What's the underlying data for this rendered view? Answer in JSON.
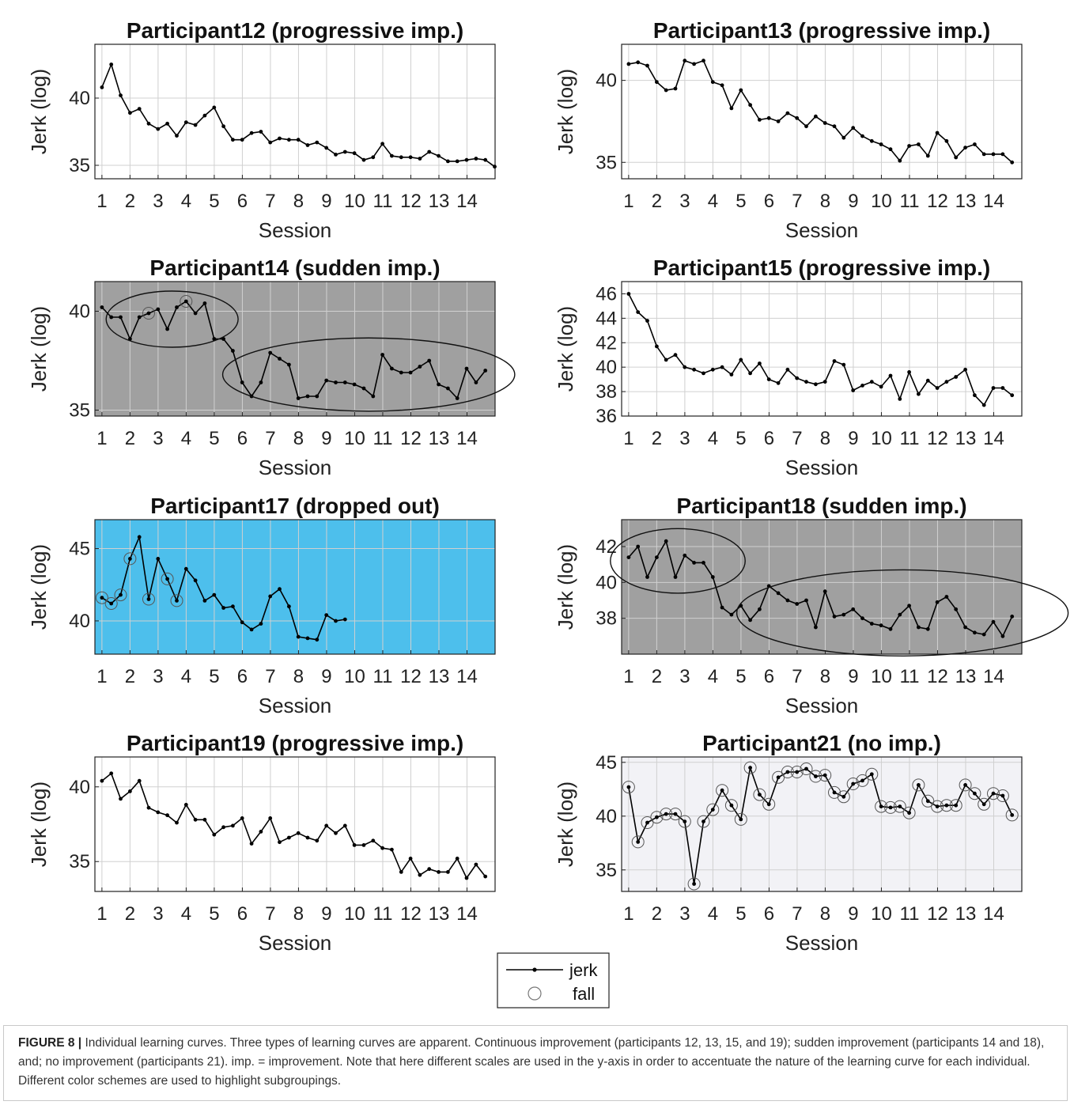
{
  "common": {
    "xlabel": "Session",
    "ylabel": "Jerk (log)",
    "xticks": [
      "1",
      "2",
      "3",
      "4",
      "5",
      "6",
      "7",
      "8",
      "9",
      "10",
      "11",
      "12",
      "13",
      "14"
    ],
    "point_spacing_sessions": 0.333
  },
  "legend": {
    "items": [
      {
        "label": "jerk",
        "marker": "dot-line"
      },
      {
        "label": "fall",
        "marker": "circle"
      }
    ],
    "placement": "bottom-center"
  },
  "caption": {
    "label": "FIGURE 8 |",
    "text": "Individual learning curves. Three types of learning curves are apparent. Continuous improvement (participants 12, 13, 15, and 19); sudden improvement (participants 14 and 18), and; no improvement (participants 21). imp. = improvement. Note that here different scales are used in the y-axis in order to accentuate the nature of the learning curve for each individual. Different color schemes are used to highlight subgroupings."
  },
  "colors": {
    "gray_background": "#a0a0a0",
    "blue_background": "#4dbfec",
    "light_background": "#f2f2f6",
    "white_background": "#ffffff",
    "line": "#000000",
    "grid": "#d0d0d0"
  },
  "chart_data": [
    {
      "type": "line",
      "title": "Participant12 (progressive imp.)",
      "background": "white",
      "ylim": [
        34,
        44
      ],
      "yticks": [
        35,
        40
      ],
      "values": [
        40.8,
        42.5,
        40.2,
        38.9,
        39.2,
        38.1,
        37.7,
        38.1,
        37.2,
        38.2,
        38.0,
        38.7,
        39.3,
        37.9,
        36.9,
        36.9,
        37.4,
        37.5,
        36.7,
        37.0,
        36.9,
        36.9,
        36.5,
        36.7,
        36.3,
        35.8,
        36.0,
        35.9,
        35.4,
        35.6,
        36.6,
        35.7,
        35.6,
        35.6,
        35.5,
        36.0,
        35.7,
        35.3,
        35.3,
        35.4,
        35.5,
        35.4,
        34.9
      ],
      "falls": [],
      "ellipses": []
    },
    {
      "type": "line",
      "title": "Participant13 (progressive imp.)",
      "background": "white",
      "ylim": [
        34,
        42.2
      ],
      "yticks": [
        35,
        40
      ],
      "values": [
        41.0,
        41.1,
        40.9,
        39.9,
        39.4,
        39.5,
        41.2,
        41.0,
        41.2,
        39.9,
        39.7,
        38.3,
        39.4,
        38.5,
        37.6,
        37.7,
        37.5,
        38.0,
        37.7,
        37.2,
        37.8,
        37.4,
        37.2,
        36.5,
        37.1,
        36.6,
        36.3,
        36.1,
        35.8,
        35.1,
        36.0,
        36.1,
        35.4,
        36.8,
        36.3,
        35.3,
        35.9,
        36.1,
        35.5,
        35.5,
        35.5,
        35.0
      ],
      "falls": [],
      "ellipses": []
    },
    {
      "type": "line",
      "title": "Participant14 (sudden imp.)",
      "background": "gray",
      "ylim": [
        34.7,
        41.5
      ],
      "yticks": [
        35,
        40
      ],
      "values": [
        40.2,
        39.7,
        39.7,
        38.6,
        39.7,
        39.9,
        40.1,
        39.1,
        40.2,
        40.5,
        39.9,
        40.4,
        38.6,
        38.6,
        38.0,
        36.4,
        35.7,
        36.4,
        37.9,
        37.6,
        37.3,
        35.6,
        35.7,
        35.7,
        36.5,
        36.4,
        36.4,
        36.3,
        36.1,
        35.7,
        37.8,
        37.1,
        36.9,
        36.9,
        37.2,
        37.5,
        36.3,
        36.1,
        35.6,
        37.1,
        36.4,
        37.0
      ],
      "falls": [
        5,
        9
      ],
      "ellipses": [
        {
          "cx": 3.5,
          "cy": 39.6,
          "rx": 2.35,
          "ry": 1.42
        },
        {
          "cx": 10.5,
          "cy": 36.8,
          "rx": 5.2,
          "ry": 1.85
        }
      ]
    },
    {
      "type": "line",
      "title": "Participant15 (progressive imp.)",
      "background": "white",
      "ylim": [
        36,
        47
      ],
      "yticks": [
        36,
        38,
        40,
        42,
        44,
        46
      ],
      "values": [
        46.0,
        44.5,
        43.8,
        41.7,
        40.6,
        41.0,
        40.0,
        39.8,
        39.5,
        39.8,
        40.0,
        39.4,
        40.6,
        39.5,
        40.3,
        39.0,
        38.7,
        39.8,
        39.1,
        38.8,
        38.6,
        38.8,
        40.5,
        40.2,
        38.1,
        38.5,
        38.8,
        38.4,
        39.3,
        37.4,
        39.6,
        37.8,
        38.9,
        38.3,
        38.8,
        39.2,
        39.8,
        37.7,
        36.9,
        38.3,
        38.3,
        37.7
      ],
      "falls": [],
      "ellipses": []
    },
    {
      "type": "line",
      "title": "Participant17 (dropped out)",
      "background": "blue",
      "ylim": [
        37.7,
        47
      ],
      "yticks": [
        40,
        45
      ],
      "values": [
        41.6,
        41.2,
        41.8,
        44.3,
        45.8,
        41.5,
        44.3,
        42.9,
        41.4,
        43.6,
        42.8,
        41.4,
        41.8,
        40.9,
        41.0,
        39.9,
        39.4,
        39.8,
        41.7,
        42.2,
        41.0,
        38.9,
        38.8,
        38.7,
        40.4,
        40.0,
        40.1
      ],
      "falls": [
        0,
        1,
        2,
        3,
        5,
        7,
        8
      ],
      "ellipses": []
    },
    {
      "type": "line",
      "title": "Participant18 (sudden imp.)",
      "background": "gray",
      "ylim": [
        36,
        43.5
      ],
      "yticks": [
        38,
        40,
        42
      ],
      "values": [
        41.4,
        42.0,
        40.3,
        41.4,
        42.3,
        40.3,
        41.5,
        41.1,
        41.1,
        40.3,
        38.6,
        38.2,
        38.7,
        37.9,
        38.5,
        39.8,
        39.4,
        39.0,
        38.8,
        39.0,
        37.5,
        39.5,
        38.1,
        38.2,
        38.5,
        38.0,
        37.7,
        37.6,
        37.4,
        38.2,
        38.7,
        37.5,
        37.4,
        38.9,
        39.2,
        38.5,
        37.5,
        37.2,
        37.1,
        37.8,
        37.0,
        38.1
      ],
      "falls": [],
      "ellipses": [
        {
          "cx": 2.75,
          "cy": 41.2,
          "rx": 2.4,
          "ry": 1.8
        },
        {
          "cx": 10.75,
          "cy": 38.3,
          "rx": 5.9,
          "ry": 2.4
        }
      ]
    },
    {
      "type": "line",
      "title": "Participant19 (progressive imp.)",
      "background": "white",
      "ylim": [
        33,
        42
      ],
      "yticks": [
        35,
        40
      ],
      "values": [
        40.4,
        40.9,
        39.2,
        39.7,
        40.4,
        38.6,
        38.3,
        38.1,
        37.6,
        38.8,
        37.8,
        37.8,
        36.8,
        37.3,
        37.4,
        37.9,
        36.2,
        37.0,
        37.9,
        36.3,
        36.6,
        36.9,
        36.6,
        36.4,
        37.4,
        36.9,
        37.4,
        36.1,
        36.1,
        36.4,
        35.9,
        35.8,
        34.3,
        35.2,
        34.1,
        34.5,
        34.3,
        34.3,
        35.2,
        33.9,
        34.8,
        34.0
      ],
      "falls": [],
      "ellipses": []
    },
    {
      "type": "line",
      "title": "Participant21 (no imp.)",
      "background": "light",
      "ylim": [
        33,
        45.5
      ],
      "yticks": [
        35,
        40,
        45
      ],
      "values": [
        42.7,
        37.6,
        39.4,
        39.9,
        40.2,
        40.2,
        39.5,
        33.7,
        39.5,
        40.6,
        42.4,
        41.0,
        39.7,
        44.5,
        42.0,
        41.1,
        43.6,
        44.1,
        44.1,
        44.4,
        43.7,
        43.8,
        42.2,
        41.8,
        43.0,
        43.3,
        43.9,
        40.9,
        40.8,
        40.9,
        40.3,
        42.9,
        41.4,
        40.9,
        41.0,
        41.0,
        42.9,
        42.1,
        41.1,
        42.1,
        41.9,
        40.1
      ],
      "falls": [
        0,
        1,
        2,
        3,
        4,
        5,
        6,
        7,
        8,
        9,
        10,
        11,
        12,
        13,
        14,
        15,
        16,
        17,
        18,
        19,
        20,
        21,
        22,
        23,
        24,
        25,
        26,
        27,
        28,
        29,
        30,
        31,
        32,
        33,
        34,
        35,
        36,
        37,
        38,
        39,
        40,
        41
      ],
      "ellipses": []
    }
  ]
}
